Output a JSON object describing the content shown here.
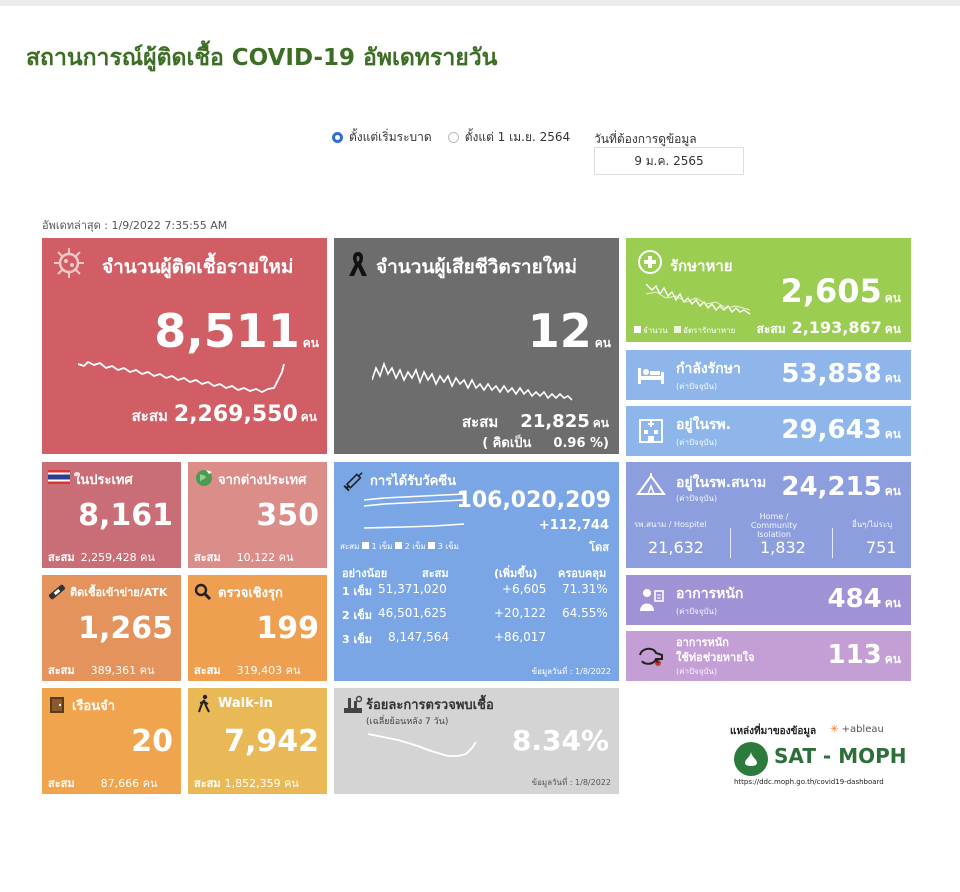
{
  "header": {
    "title": "สถานการณ์ผู้ติดเชื้อ COVID-19 อัพเดทรายวัน"
  },
  "filter": {
    "option1": "ตั้งแต่เริ่มระบาด",
    "option2": "ตั้งแต่ 1 เม.ย. 2564",
    "date_label": "วันที่ต้องการดูข้อมูล",
    "date_value": "9 ม.ค. 2565"
  },
  "updated": "อัพเดทล่าสุด : 1/9/2022 7:35:55 AM",
  "unit": "คน",
  "new_cases": {
    "label": "จำนวนผู้ติดเชื้อรายใหม่",
    "value": "8,511",
    "cum_label": "สะสม",
    "cum_value": "2,269,550"
  },
  "new_deaths": {
    "label": "จำนวนผู้เสียชีวิตรายใหม่",
    "value": "12",
    "cum_label": "สะสม",
    "cum_value": "21,825",
    "rate_label": "( คิดเป็น",
    "rate_value": "0.96 %)"
  },
  "recovered": {
    "label": "รักษาหาย",
    "value": "2,605",
    "legend1": "จำนวน",
    "legend2": "อัตรารักษาหาย",
    "cum_label": "สะสม",
    "cum_value": "2,193,867"
  },
  "treating": {
    "label": "กำลังรักษา",
    "sub": "(ค่าปัจจุบัน)",
    "value": "53,858"
  },
  "in_hospital": {
    "label": "อยู่ในรพ.",
    "sub": "(ค่าปัจจุบัน)",
    "value": "29,643"
  },
  "domestic": {
    "label": "ในประเทศ",
    "value": "8,161",
    "cum_label": "สะสม",
    "cum_value": "2,259,428"
  },
  "imported": {
    "label": "จากต่างประเทศ",
    "value": "350",
    "cum_label": "สะสม",
    "cum_value": "10,122"
  },
  "prison_atk": {
    "label": "ติดเชื้อเข้าข่าย/ATK",
    "value": "1,265",
    "cum_label": "สะสม",
    "cum_value": "389,361"
  },
  "active_search": {
    "label": "ตรวจเชิงรุก",
    "value": "199",
    "cum_label": "สะสม",
    "cum_value": "319,403"
  },
  "prison": {
    "label": "เรือนจำ",
    "value": "20",
    "cum_label": "สะสม",
    "cum_value": "87,666"
  },
  "walkin": {
    "label": "Walk-in",
    "value": "7,942",
    "cum_label": "สะสม",
    "cum_value": "1,852,359"
  },
  "vaccine": {
    "label": "การได้รับวัคซีน",
    "total": "106,020,209",
    "increase": "+112,744",
    "unit": "โดส",
    "legend_prefix": "สะสม",
    "legend1": "1 เข็ม",
    "legend2": "2 เข็ม",
    "legend3": "3 เข็ม",
    "headers": [
      "อย่างน้อย",
      "สะสม",
      "(เพิ่มขึ้น)",
      "ครอบคลุม"
    ],
    "rows": [
      [
        "1 เข็ม",
        "51,371,020",
        "+6,605",
        "71.31%"
      ],
      [
        "2 เข็ม",
        "46,501,625",
        "+20,122",
        "64.55%"
      ],
      [
        "3 เข็ม",
        "8,147,564",
        "+86,017",
        ""
      ]
    ],
    "note": "ข้อมูลวันที่ : 1/8/2022"
  },
  "field_hospital": {
    "label": "อยู่ในรพ.สนาม",
    "sub": "(ค่าปัจจุบัน)",
    "value": "24,215",
    "col1_label": "รพ.สนาม / Hospitel",
    "col1_value": "21,632",
    "col2_label": "Home / Community Isolation",
    "col2_value": "1,832",
    "col3_label": "อื่นๆ/ไม่ระบุ",
    "col3_value": "751"
  },
  "positivity": {
    "label": "ร้อยละการตรวจพบเชื้อ",
    "sub": "(เฉลี่ยย้อนหลัง 7 วัน)",
    "value": "8.34%",
    "note": "ข้อมูลวันที่ : 1/8/2022"
  },
  "severe": {
    "label": "อาการหนัก",
    "sub": "(ค่าปัจจุบัน)",
    "value": "484"
  },
  "ventilator": {
    "label1": "อาการหนัก",
    "label2": "ใช้ท่อช่วยหายใจ",
    "sub": "(ค่าปัจจุบัน)",
    "value": "113"
  },
  "source": {
    "label": "แหล่งที่มาของข้อมูล",
    "tableau": "+ableau",
    "brand": "SAT - MOPH",
    "url": "https://ddc.moph.go.th/covid19-dashboard"
  }
}
